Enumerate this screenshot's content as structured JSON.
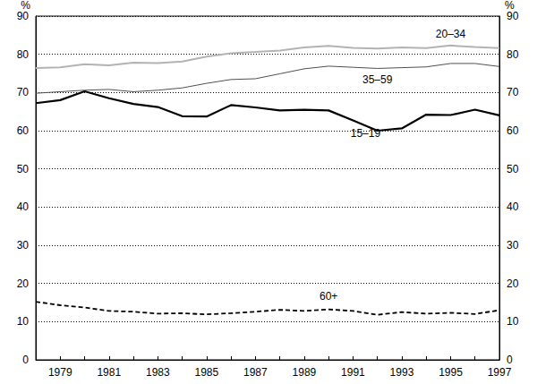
{
  "chart_data": {
    "type": "line",
    "y_label": "%",
    "categories": [
      null,
      "1979",
      null,
      "1981",
      null,
      "1983",
      null,
      "1985",
      null,
      "1987",
      null,
      "1989",
      null,
      "1991",
      null,
      "1993",
      null,
      "1995",
      null,
      "1997"
    ],
    "series": [
      {
        "name": "20–34",
        "color": "#b3b3b3",
        "line_style": "solid",
        "values": [
          76.4,
          76.6,
          77.4,
          77.1,
          77.8,
          77.7,
          78.1,
          79.4,
          80.3,
          80.6,
          81.0,
          81.8,
          82.2,
          81.7,
          81.5,
          81.8,
          81.6,
          82.3,
          81.9,
          81.6
        ]
      },
      {
        "name": "35–59",
        "color": "#505050",
        "line_style": "solid",
        "values": [
          69.8,
          70.2,
          70.6,
          70.8,
          70.2,
          70.6,
          71.2,
          72.4,
          73.4,
          73.6,
          74.9,
          76.2,
          76.9,
          76.6,
          76.3,
          76.5,
          76.7,
          77.6,
          77.6,
          76.8
        ]
      },
      {
        "name": "15–19",
        "color": "#000000",
        "line_style": "solid",
        "values": [
          67.2,
          68.0,
          70.3,
          68.5,
          67.0,
          66.2,
          63.8,
          63.7,
          66.7,
          66.1,
          65.3,
          65.5,
          65.3,
          62.7,
          60.0,
          60.6,
          64.2,
          64.1,
          65.5,
          64.0
        ]
      },
      {
        "name": "60+",
        "color": "#000000",
        "line_style": "dashed",
        "values": [
          15.2,
          14.3,
          13.7,
          12.8,
          12.6,
          12.1,
          12.2,
          11.9,
          12.2,
          12.6,
          13.1,
          12.8,
          13.2,
          12.8,
          11.8,
          12.5,
          12.1,
          12.3,
          12.0,
          13.0
        ]
      }
    ],
    "ylim": [
      0,
      90
    ],
    "yticks": [
      0,
      10,
      20,
      30,
      40,
      50,
      60,
      70,
      80
    ],
    "grid": true
  }
}
